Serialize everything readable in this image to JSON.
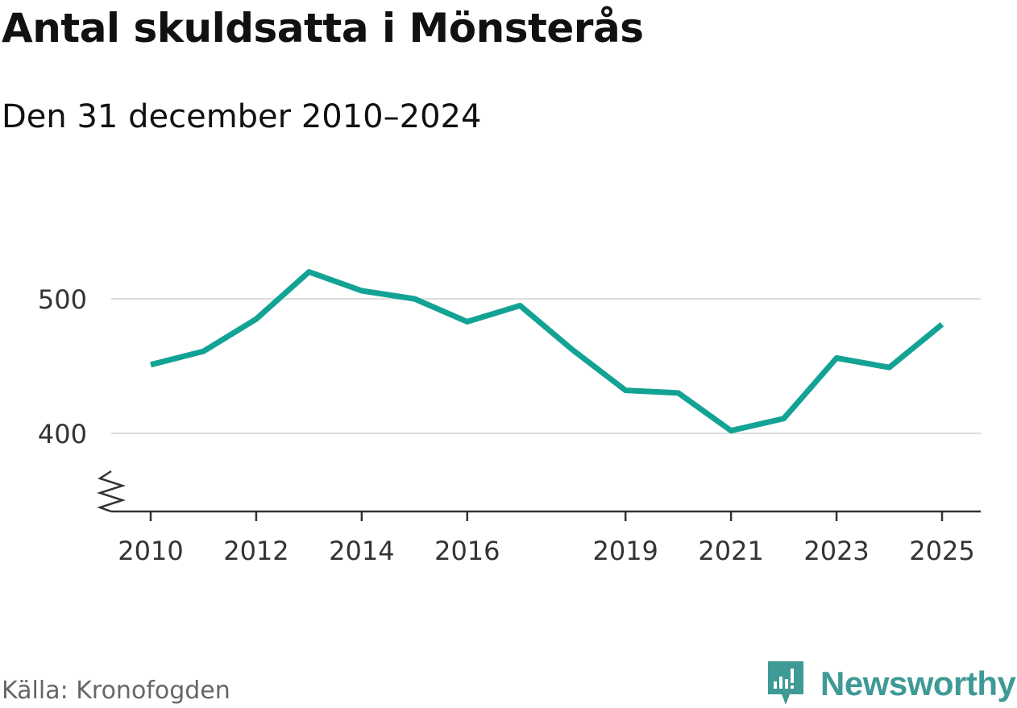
{
  "title": "Antal skuldsatta i Mönsterås",
  "subtitle": "Den 31 december 2010–2024",
  "source": "Källa: Kronofogden",
  "brand": {
    "name": "Newsworthy",
    "color": "#3f9a95"
  },
  "colors": {
    "line": "#13a395",
    "grid": "#dddddd",
    "axis": "#333333"
  },
  "chart_data": {
    "type": "line",
    "title": "Antal skuldsatta i Mönsterås",
    "subtitle": "Den 31 december 2010–2024",
    "xlabel": "",
    "ylabel": "",
    "x": [
      2010,
      2011,
      2012,
      2013,
      2014,
      2015,
      2016,
      2017,
      2018,
      2019,
      2020,
      2021,
      2022,
      2023,
      2024,
      2025
    ],
    "values": [
      451,
      461,
      485,
      520,
      506,
      500,
      483,
      495,
      462,
      432,
      430,
      402,
      411,
      456,
      449,
      481
    ],
    "x_ticks": [
      2010,
      2012,
      2014,
      2016,
      2019,
      2021,
      2023,
      2025
    ],
    "y_ticks": [
      400,
      500
    ],
    "xlim": [
      2010,
      2025
    ],
    "ylim": [
      340,
      550
    ],
    "grid": true,
    "legend": "none",
    "y_axis_break": true
  }
}
